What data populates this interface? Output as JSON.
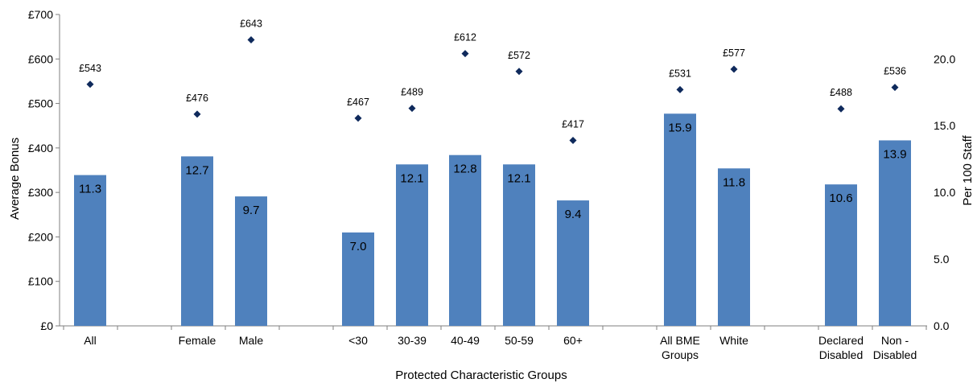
{
  "chart_data": {
    "type": "bar",
    "xlabel": "Protected Characteristic Groups",
    "ylabel": "Average Bonus",
    "y2label": "Per 100 Staff",
    "ylim": [
      0,
      700
    ],
    "y2lim": [
      0,
      23.333
    ],
    "y_ticks": [
      "£0",
      "£100",
      "£200",
      "£300",
      "£400",
      "£500",
      "£600",
      "£700"
    ],
    "y2_ticks": [
      "0.0",
      "5.0",
      "10.0",
      "15.0",
      "20.0"
    ],
    "grid": false,
    "legend": "none",
    "bar_color": "#4F81BD",
    "marker_color": "#0F2A5C",
    "categories": [
      {
        "label": [
          "All"
        ],
        "bar": 11.3,
        "bar_label": "11.3",
        "bonus": 543,
        "bonus_label": "£543"
      },
      {
        "label": [
          "Female"
        ],
        "bar": 12.7,
        "bar_label": "12.7",
        "bonus": 476,
        "bonus_label": "£476"
      },
      {
        "label": [
          "Male"
        ],
        "bar": 9.7,
        "bar_label": "9.7",
        "bonus": 643,
        "bonus_label": "£643"
      },
      {
        "label": [
          "<30"
        ],
        "bar": 7.0,
        "bar_label": "7.0",
        "bonus": 467,
        "bonus_label": "£467"
      },
      {
        "label": [
          "30-39"
        ],
        "bar": 12.1,
        "bar_label": "12.1",
        "bonus": 489,
        "bonus_label": "£489"
      },
      {
        "label": [
          "40-49"
        ],
        "bar": 12.8,
        "bar_label": "12.8",
        "bonus": 612,
        "bonus_label": "£612"
      },
      {
        "label": [
          "50-59"
        ],
        "bar": 12.1,
        "bar_label": "12.1",
        "bonus": 572,
        "bonus_label": "£572"
      },
      {
        "label": [
          "60+"
        ],
        "bar": 9.4,
        "bar_label": "9.4",
        "bonus": 417,
        "bonus_label": "£417"
      },
      {
        "label": [
          "All BME",
          "Groups"
        ],
        "bar": 15.9,
        "bar_label": "15.9",
        "bonus": 531,
        "bonus_label": "£531"
      },
      {
        "label": [
          "White"
        ],
        "bar": 11.8,
        "bar_label": "11.8",
        "bonus": 577,
        "bonus_label": "£577"
      },
      {
        "label": [
          "Declared",
          "Disabled"
        ],
        "bar": 10.6,
        "bar_label": "10.6",
        "bonus": 488,
        "bonus_label": "£488"
      },
      {
        "label": [
          "Non -",
          "Disabled"
        ],
        "bar": 13.9,
        "bar_label": "13.9",
        "bonus": 536,
        "bonus_label": "£536"
      }
    ]
  }
}
